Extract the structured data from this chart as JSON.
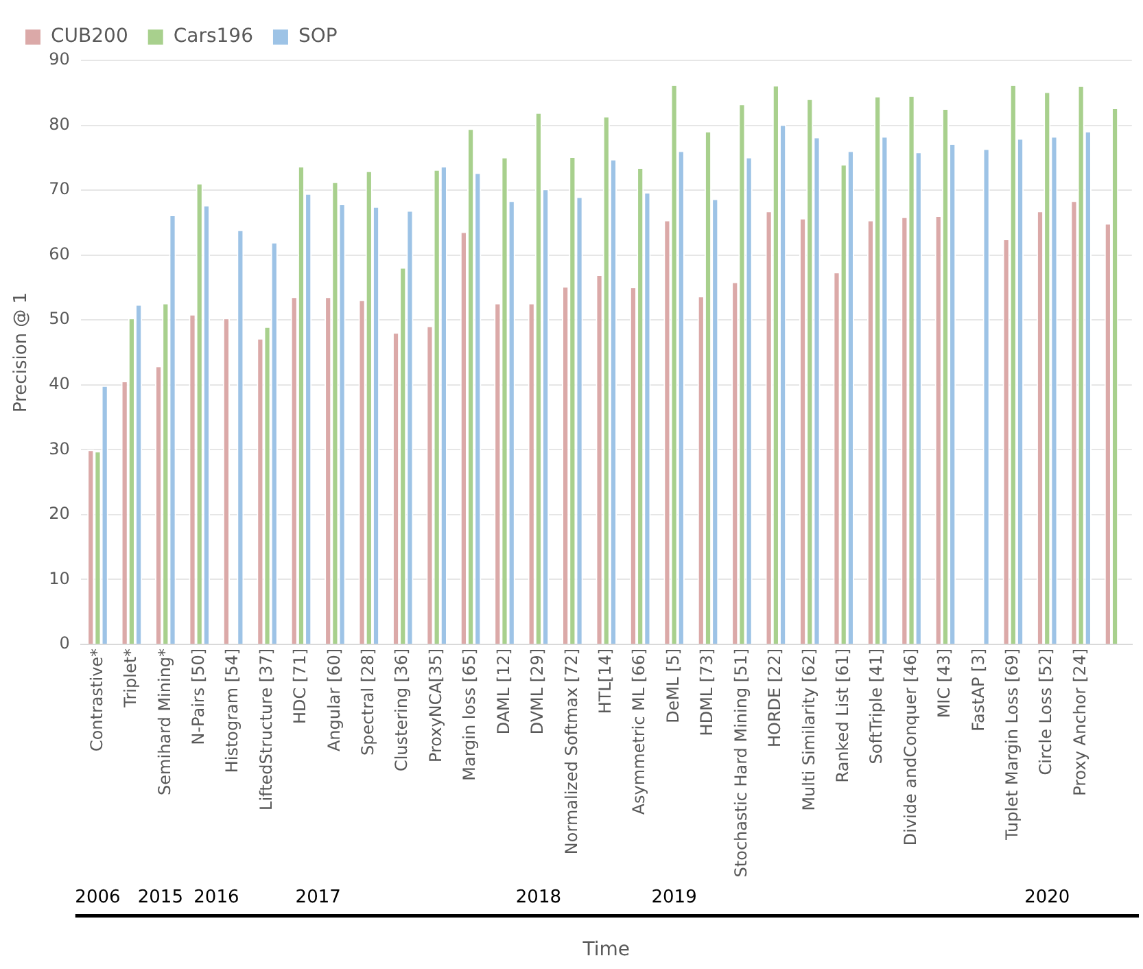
{
  "chart_data": {
    "type": "bar",
    "xlabel": "Time",
    "ylabel": "Precision @ 1",
    "categories": [
      "Contrastive*",
      "Triplet*",
      "Semihard Mining*",
      "N-Pairs [50]",
      "Histogram [54]",
      "LiftedStructure [37]",
      "HDC [71]",
      "Angular [60]",
      "Spectral [28]",
      "Clustering [36]",
      "ProxyNCA[35]",
      "Margin loss [65]",
      "DAML [12]",
      "DVML [29]",
      "Normalized Softmax [72]",
      "HTL[14]",
      "Asymmetric ML [66]",
      "DeML [5]",
      "HDML [73]",
      "Stochastic Hard Mining [51]",
      "HORDE [22]",
      "Multi Similarity [62]",
      "Ranked List [61]",
      "SoftTriple [41]",
      "Divide andConquer [46]",
      "MIC [43]",
      "FastAP [3]",
      "Tuplet Margin Loss [69]",
      "Circle Loss [52]",
      "Proxy Anchor [24]",
      null
    ],
    "series": [
      {
        "name": "CUB200",
        "color": "#dba9a8",
        "values": [
          30.0,
          40.6,
          42.9,
          50.9,
          50.3,
          47.2,
          53.6,
          53.6,
          53.1,
          48.1,
          49.1,
          63.6,
          52.6,
          52.6,
          55.2,
          57.0,
          55.1,
          65.4,
          53.7,
          55.9,
          66.8,
          65.7,
          57.4,
          65.4,
          65.9,
          66.1,
          null,
          62.5,
          66.8,
          68.4,
          64.9
        ]
      },
      {
        "name": "Cars196",
        "color": "#a8d08d",
        "values": [
          29.8,
          50.3,
          52.6,
          71.1,
          null,
          49.0,
          73.7,
          71.3,
          73.0,
          58.1,
          73.2,
          79.5,
          75.1,
          82.0,
          75.2,
          81.4,
          73.5,
          86.3,
          79.1,
          83.3,
          86.2,
          84.1,
          74.0,
          84.5,
          84.6,
          82.6,
          null,
          86.3,
          85.2,
          86.1,
          82.7
        ]
      },
      {
        "name": "SOP",
        "color": "#9dc3e6",
        "values": [
          39.9,
          52.4,
          66.2,
          67.7,
          63.9,
          62.0,
          69.5,
          67.9,
          67.5,
          66.9,
          73.7,
          72.7,
          68.4,
          70.2,
          69.0,
          74.8,
          69.7,
          76.1,
          68.7,
          75.1,
          80.1,
          78.2,
          76.1,
          78.3,
          75.9,
          77.2,
          76.4,
          78.0,
          78.3,
          79.1,
          null
        ]
      }
    ],
    "ylim": [
      0,
      90
    ],
    "yticks": [
      0,
      10,
      20,
      30,
      40,
      50,
      60,
      70,
      80,
      90
    ],
    "grid": "y",
    "legend": "top left",
    "annotations": [
      "2006",
      "2015",
      "2016",
      "2017",
      "2018",
      "2019",
      "2020"
    ]
  }
}
